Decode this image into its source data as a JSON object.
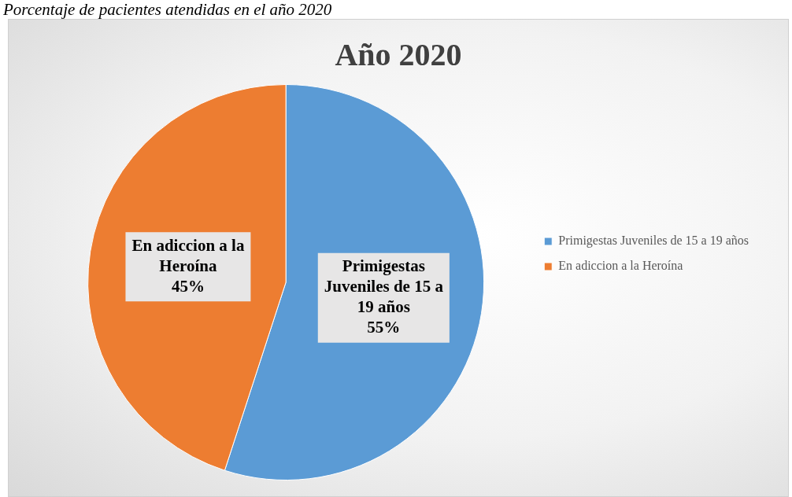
{
  "chart_data": {
    "type": "pie",
    "title": "Año 2020",
    "categories": [
      "Primigestas Juveniles de 15 a 19 años",
      "En adiccion a la Heroína"
    ],
    "values": [
      55,
      45
    ],
    "colors": [
      "#5b9bd5",
      "#ed7d31"
    ],
    "value_labels": [
      "55%",
      "45%"
    ],
    "legend": "right",
    "annotations": [
      "Porcentaje de pacientes atendidas en el año 2020"
    ]
  }
}
